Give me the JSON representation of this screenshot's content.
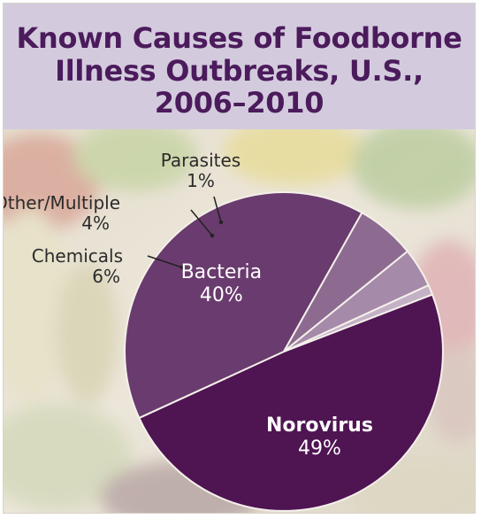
{
  "title": {
    "line1": "Known Causes of Foodborne",
    "line2": "Illness Outbreaks, U.S.,",
    "line3": "2006–2010"
  },
  "colors": {
    "header_bg": "#d3cbdd",
    "title_text": "#4b1b5c",
    "norovirus": "#4f1452",
    "bacteria": "#6a3b6e",
    "chemicals": "#8d6b91",
    "other": "#a68aa9",
    "parasites": "#c3b1c6"
  },
  "chart_data": {
    "type": "pie",
    "title": "Known Causes of Foodborne Illness Outbreaks, U.S., 2006–2010",
    "labels": [
      "Norovirus",
      "Bacteria",
      "Chemicals",
      "Other/Multiple",
      "Parasites"
    ],
    "values": [
      49,
      40,
      6,
      4,
      1
    ],
    "value_labels": [
      "49%",
      "40%",
      "6%",
      "4%",
      "1%"
    ],
    "colors": [
      "#4f1452",
      "#6a3b6e",
      "#8d6b91",
      "#a68aa9",
      "#c3b1c6"
    ],
    "label_text_colors": [
      "#ffffff",
      "#ffffff",
      "#2b2b2b",
      "#2b2b2b",
      "#2b2b2b"
    ],
    "inside_label": [
      true,
      true,
      false,
      false,
      false
    ],
    "start_angle_deg": -21,
    "direction": "clockwise"
  }
}
